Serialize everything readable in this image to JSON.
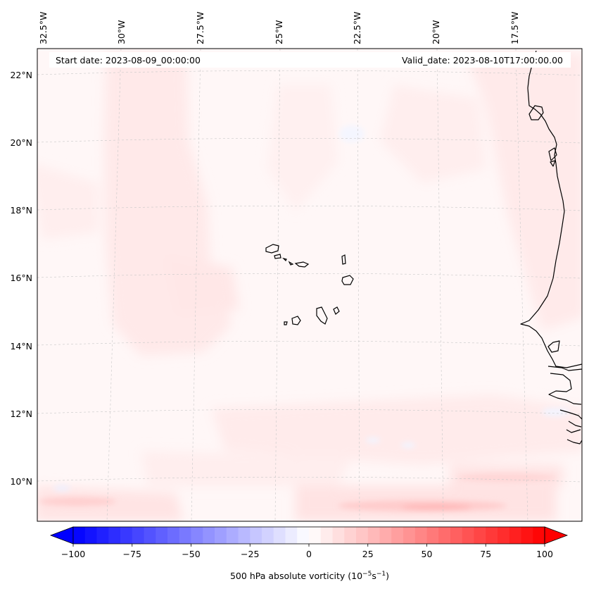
{
  "map": {
    "start_date_label": "Start date: 2023-08-09_00:00:00",
    "valid_date_label": "Valid_date: 2023-08-10T17:00:00.00",
    "lon_labels": [
      "32.5°W",
      "30°W",
      "27.5°W",
      "25°W",
      "22.5°W",
      "20°W",
      "17.5°W"
    ],
    "lat_labels": [
      "22°N",
      "20°N",
      "18°N",
      "16°N",
      "14°N",
      "12°N",
      "10°N"
    ],
    "gridlines": true,
    "coastline_color": "#000000"
  },
  "colorbar": {
    "label_main": "500 hPa absolute vorticity (10",
    "label_exp1": "−5",
    "label_mid": "s",
    "label_exp2": "−1",
    "label_end": ")",
    "tick_labels": [
      "−100",
      "−75",
      "−50",
      "−25",
      "0",
      "25",
      "50",
      "75",
      "100"
    ],
    "vmin": -100,
    "vmax": 100,
    "step": 5,
    "colors": {
      "min": "#0000ff",
      "mid": "#ffffff",
      "max": "#ff0000"
    },
    "extend": "both"
  }
}
